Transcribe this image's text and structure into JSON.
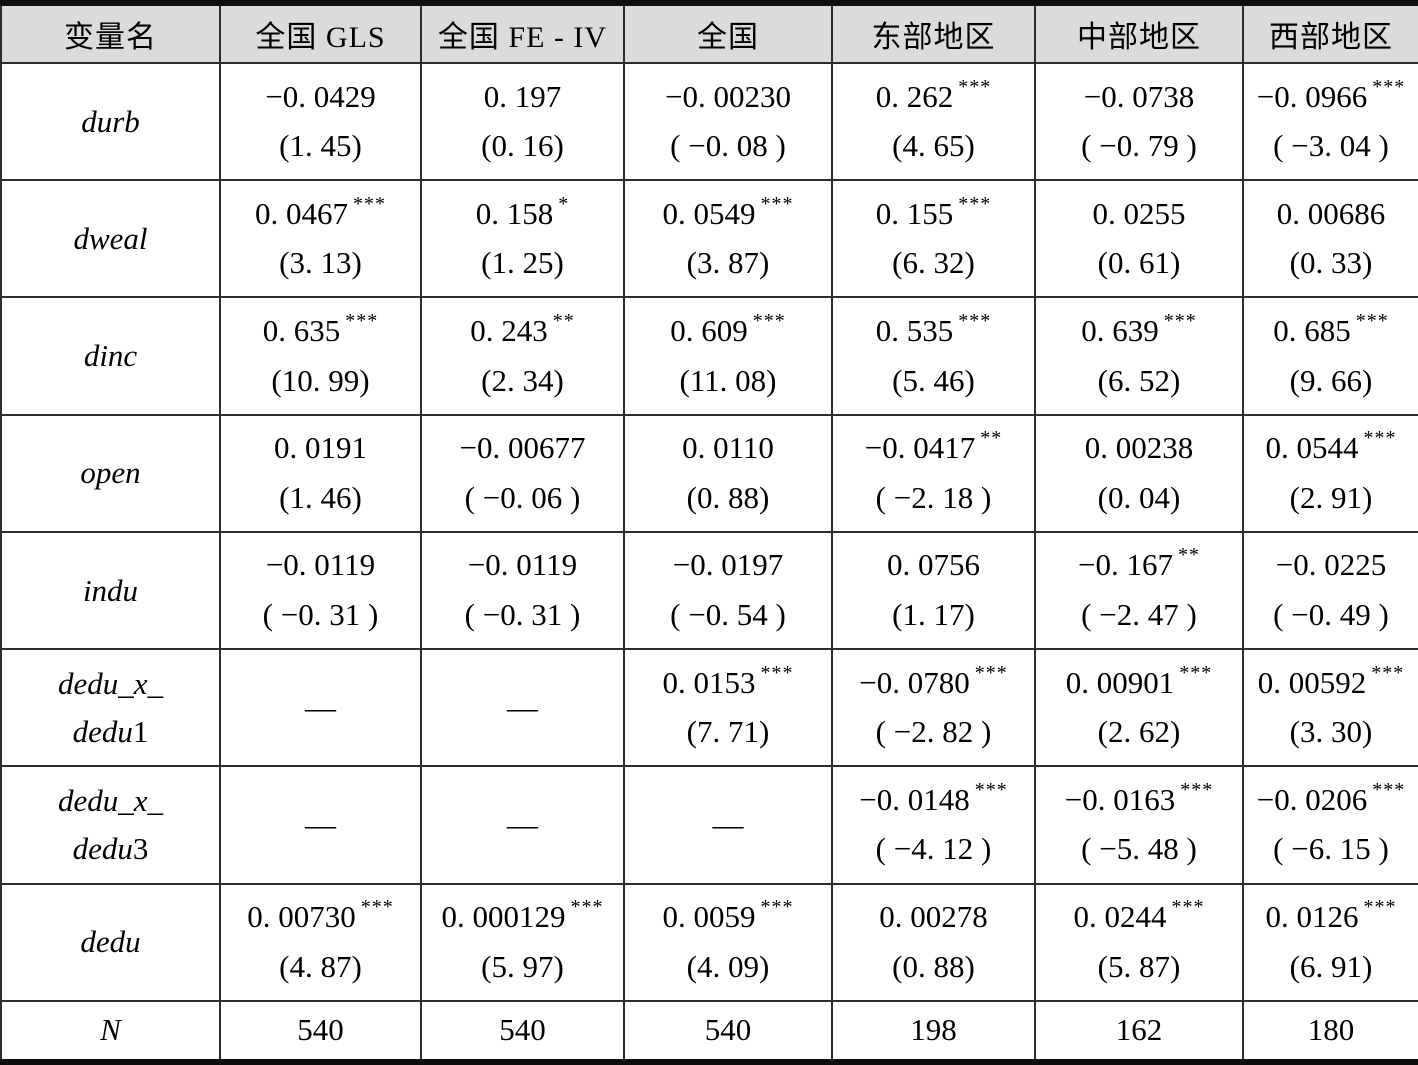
{
  "table": {
    "dash": "—",
    "columns": [
      "变量名",
      "全国 GLS",
      "全国 FE - IV",
      "全国",
      "东部地区",
      "中部地区",
      "西部地区"
    ],
    "rows": [
      {
        "label_lines": [
          "durb"
        ],
        "cells": [
          {
            "v": "−0. 0429",
            "t": "(1. 45)"
          },
          {
            "v": "0. 197",
            "t": "(0. 16)"
          },
          {
            "v": "−0. 00230",
            "t": "( −0. 08 )"
          },
          {
            "v": "0. 262",
            "s": "***",
            "t": "(4. 65)"
          },
          {
            "v": "−0. 0738",
            "t": "( −0. 79 )"
          },
          {
            "v": "−0. 0966",
            "s": "***",
            "t": "( −3. 04 )"
          }
        ]
      },
      {
        "label_lines": [
          "dweal"
        ],
        "cells": [
          {
            "v": "0. 0467",
            "s": "***",
            "t": "(3. 13)"
          },
          {
            "v": "0. 158",
            "s": "*",
            "t": "(1. 25)"
          },
          {
            "v": "0. 0549",
            "s": "***",
            "t": "(3. 87)"
          },
          {
            "v": "0. 155",
            "s": "***",
            "t": "(6. 32)"
          },
          {
            "v": "0. 0255",
            "t": "(0. 61)"
          },
          {
            "v": "0. 00686",
            "t": "(0. 33)"
          }
        ]
      },
      {
        "label_lines": [
          "dinc"
        ],
        "cells": [
          {
            "v": "0. 635",
            "s": "***",
            "t": "(10. 99)"
          },
          {
            "v": "0. 243",
            "s": "**",
            "t": "(2. 34)"
          },
          {
            "v": "0. 609",
            "s": "***",
            "t": "(11. 08)"
          },
          {
            "v": "0. 535",
            "s": "***",
            "t": "(5. 46)"
          },
          {
            "v": "0. 639",
            "s": "***",
            "t": "(6. 52)"
          },
          {
            "v": "0. 685",
            "s": "***",
            "t": "(9. 66)"
          }
        ]
      },
      {
        "label_lines": [
          "open"
        ],
        "cells": [
          {
            "v": "0. 0191",
            "t": "(1. 46)"
          },
          {
            "v": "−0. 00677",
            "t": "( −0. 06 )"
          },
          {
            "v": "0. 0110",
            "t": "(0. 88)"
          },
          {
            "v": "−0. 0417",
            "s": "**",
            "t": "( −2. 18 )"
          },
          {
            "v": "0. 00238",
            "t": "(0. 04)"
          },
          {
            "v": "0. 0544",
            "s": "***",
            "t": "(2. 91)"
          }
        ]
      },
      {
        "label_lines": [
          "indu"
        ],
        "cells": [
          {
            "v": "−0. 0119",
            "t": "( −0. 31 )"
          },
          {
            "v": "−0. 0119",
            "t": "( −0. 31 )"
          },
          {
            "v": "−0. 0197",
            "t": "( −0. 54 )"
          },
          {
            "v": "0. 0756",
            "t": "(1. 17)"
          },
          {
            "v": "−0. 167",
            "s": "**",
            "t": "( −2. 47 )"
          },
          {
            "v": "−0. 0225",
            "t": "( −0. 49 )"
          }
        ]
      },
      {
        "label_lines": [
          "dedu_x_",
          "dedu1"
        ],
        "cells": [
          {
            "dash": true
          },
          {
            "dash": true
          },
          {
            "v": "0. 0153",
            "s": "***",
            "t": "(7. 71)"
          },
          {
            "v": "−0. 0780",
            "s": "***",
            "t": "( −2. 82 )"
          },
          {
            "v": "0. 00901",
            "s": "***",
            "t": "(2. 62)"
          },
          {
            "v": "0. 00592",
            "s": "***",
            "t": "(3. 30)"
          }
        ]
      },
      {
        "label_lines": [
          "dedu_x_",
          "dedu3"
        ],
        "cells": [
          {
            "dash": true
          },
          {
            "dash": true
          },
          {
            "dash": true
          },
          {
            "v": "−0. 0148",
            "s": "***",
            "t": "( −4. 12 )"
          },
          {
            "v": "−0. 0163",
            "s": "***",
            "t": "( −5. 48 )"
          },
          {
            "v": "−0. 0206",
            "s": "***",
            "t": "( −6. 15 )"
          }
        ]
      },
      {
        "label_lines": [
          "dedu"
        ],
        "cells": [
          {
            "v": "0. 00730",
            "s": "***",
            "t": "(4. 87)"
          },
          {
            "v": "0. 000129",
            "s": "***",
            "t": "(5. 97)"
          },
          {
            "v": "0. 0059",
            "s": "***",
            "t": "(4. 09)"
          },
          {
            "v": "0. 00278",
            "t": "(0. 88)"
          },
          {
            "v": "0. 0244",
            "s": "***",
            "t": "(5. 87)"
          },
          {
            "v": "0. 0126",
            "s": "***",
            "t": "(6. 91)"
          }
        ]
      }
    ],
    "n_row": {
      "label": "N",
      "values": [
        "540",
        "540",
        "540",
        "198",
        "162",
        "180"
      ]
    }
  }
}
